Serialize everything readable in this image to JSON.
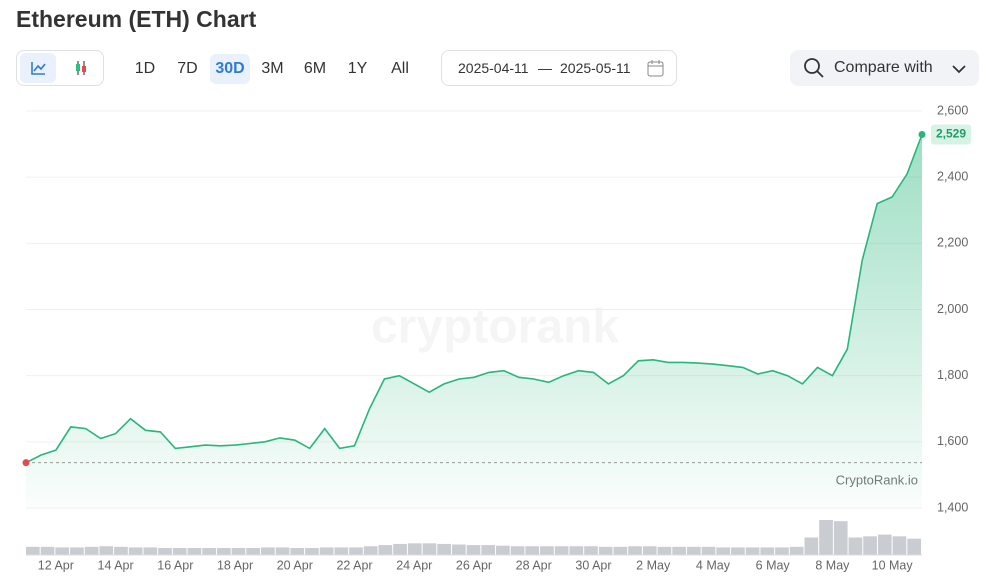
{
  "header": {
    "title": "Ethereum (ETH) Chart"
  },
  "toolbar": {
    "ranges": [
      "1D",
      "7D",
      "30D",
      "3M",
      "6M",
      "1Y",
      "All"
    ],
    "active": "30D",
    "date_from": "2025-04-11",
    "date_separator": "—",
    "date_to": "2025-05-11",
    "compare": "Compare with"
  },
  "chart_data": {
    "type": "line",
    "color": "#27b67c",
    "watermark": "cryptorank",
    "credit": "CryptoRank.io",
    "categories": [
      null,
      null,
      "12 Apr",
      null,
      null,
      null,
      "14 Apr",
      null,
      null,
      null,
      "16 Apr",
      null,
      null,
      null,
      "18 Apr",
      null,
      null,
      null,
      "20 Apr",
      null,
      null,
      null,
      "22 Apr",
      null,
      null,
      null,
      "24 Apr",
      null,
      null,
      null,
      "26 Apr",
      null,
      null,
      null,
      "28 Apr",
      null,
      null,
      null,
      "30 Apr",
      null,
      null,
      null,
      "2 May",
      null,
      null,
      null,
      "4 May",
      null,
      null,
      null,
      "6 May",
      null,
      null,
      null,
      "8 May",
      null,
      null,
      null,
      "10 May",
      null,
      null
    ],
    "values": [
      1537,
      1560,
      1575,
      1645,
      1640,
      1610,
      1625,
      1670,
      1635,
      1630,
      1580,
      1585,
      1590,
      1588,
      1590,
      1595,
      1600,
      1612,
      1605,
      1580,
      1640,
      1580,
      1588,
      1700,
      1790,
      1800,
      1775,
      1750,
      1775,
      1790,
      1795,
      1810,
      1815,
      1795,
      1790,
      1780,
      1800,
      1815,
      1810,
      1775,
      1800,
      1845,
      1848,
      1840,
      1840,
      1838,
      1835,
      1830,
      1825,
      1805,
      1815,
      1800,
      1775,
      1825,
      1800,
      1880,
      2150,
      2320,
      2340,
      2410,
      2529
    ],
    "last_label": "2,529",
    "volume": [
      14,
      14,
      13,
      13,
      14,
      15,
      14,
      13,
      13,
      12,
      12,
      12,
      12,
      12,
      12,
      12,
      13,
      13,
      12,
      12,
      13,
      13,
      13,
      15,
      17,
      19,
      20,
      20,
      19,
      18,
      17,
      17,
      16,
      15,
      15,
      15,
      15,
      15,
      15,
      14,
      14,
      15,
      15,
      14,
      14,
      14,
      14,
      13,
      13,
      13,
      13,
      13,
      14,
      30,
      60,
      58,
      30,
      32,
      35,
      32,
      28
    ],
    "ylim": [
      1400,
      2600
    ],
    "yticks": [
      {
        "value": 1400,
        "label": "1,400"
      },
      {
        "value": 1600,
        "label": "1,600"
      },
      {
        "value": 1800,
        "label": "1,800"
      },
      {
        "value": 2000,
        "label": "2,000"
      },
      {
        "value": 2200,
        "label": "2,200"
      },
      {
        "value": 2400,
        "label": "2,400"
      },
      {
        "value": 2600,
        "label": "2,600"
      }
    ],
    "grid": true
  }
}
